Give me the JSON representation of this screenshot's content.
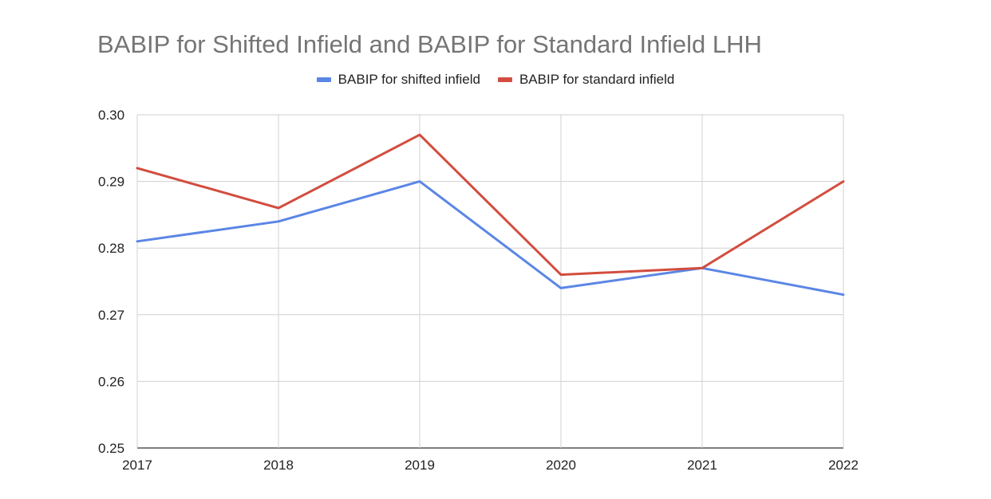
{
  "chart_data": {
    "type": "line",
    "title": "BABIP for Shifted Infield and BABIP for Standard Infield LHH",
    "xlabel": "",
    "ylabel": "",
    "categories": [
      "2017",
      "2018",
      "2019",
      "2020",
      "2021",
      "2022"
    ],
    "ylim": [
      0.25,
      0.3
    ],
    "yticks": [
      "0.25",
      "0.26",
      "0.27",
      "0.28",
      "0.29",
      "0.30"
    ],
    "grid": true,
    "legend_position": "top",
    "series": [
      {
        "name": "BABIP for shifted infield",
        "color": "#5b86e5",
        "values": [
          0.281,
          0.284,
          0.29,
          0.274,
          0.277,
          0.273
        ]
      },
      {
        "name": "BABIP for standard infield",
        "color": "#d24d3f",
        "values": [
          0.292,
          0.286,
          0.297,
          0.276,
          0.277,
          0.29
        ]
      }
    ]
  }
}
